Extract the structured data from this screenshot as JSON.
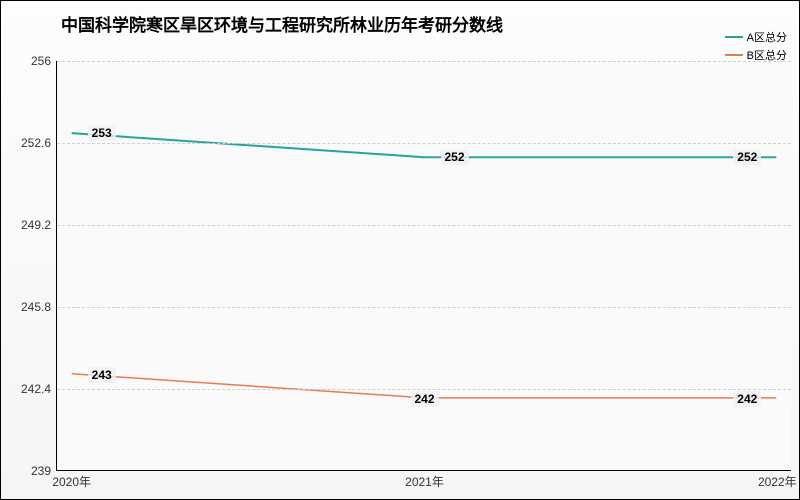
{
  "chart": {
    "type": "line",
    "title": "中国科学院寒区旱区环境与工程研究所林业历年考研分数线",
    "title_fontsize": 17,
    "background_gradient": [
      "#fdfdfd",
      "#f5f5f5"
    ],
    "plot_background": "#fafafa",
    "grid_color": "#d0d0d0",
    "axis_color": "#000000",
    "ylim": [
      239,
      256
    ],
    "yticks": [
      239,
      242.4,
      245.8,
      249.2,
      252.6,
      256
    ],
    "x_categories": [
      "2020年",
      "2021年",
      "2022年"
    ],
    "x_positions_pct": [
      2,
      50,
      98
    ],
    "series": [
      {
        "name": "A区总分",
        "color": "#2aa39a",
        "line_width": 2,
        "values": [
          253,
          252,
          252
        ],
        "label_offset_x": [
          30,
          30,
          -30
        ],
        "label_offset_y": [
          0,
          0,
          0
        ]
      },
      {
        "name": "B区总分",
        "color": "#e87a52",
        "line_width": 1.5,
        "values": [
          243,
          242,
          242
        ],
        "label_offset_x": [
          30,
          0,
          -30
        ],
        "label_offset_y": [
          0,
          0,
          0
        ]
      }
    ],
    "legend_fontsize": 11,
    "tick_fontsize": 12,
    "datalabel_fontsize": 12
  }
}
